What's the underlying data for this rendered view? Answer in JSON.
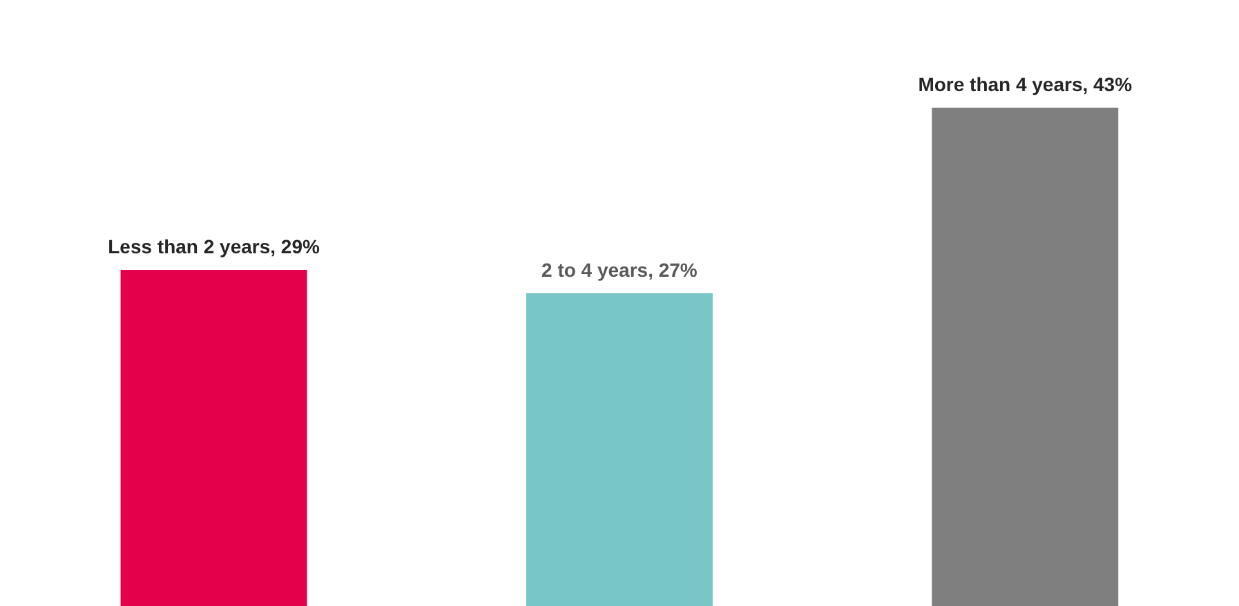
{
  "chart_data": {
    "type": "bar",
    "categories": [
      null,
      null,
      null
    ],
    "values": [
      29,
      27,
      43
    ],
    "colors": [
      "#e4004b",
      "#78c6c6",
      "#7f7f7f"
    ],
    "value_labels": [
      "Less than 2 years, 29%",
      "2 to 4 years, 27%",
      "More than 4 years, 43%"
    ],
    "grid": false,
    "legend": false
  }
}
